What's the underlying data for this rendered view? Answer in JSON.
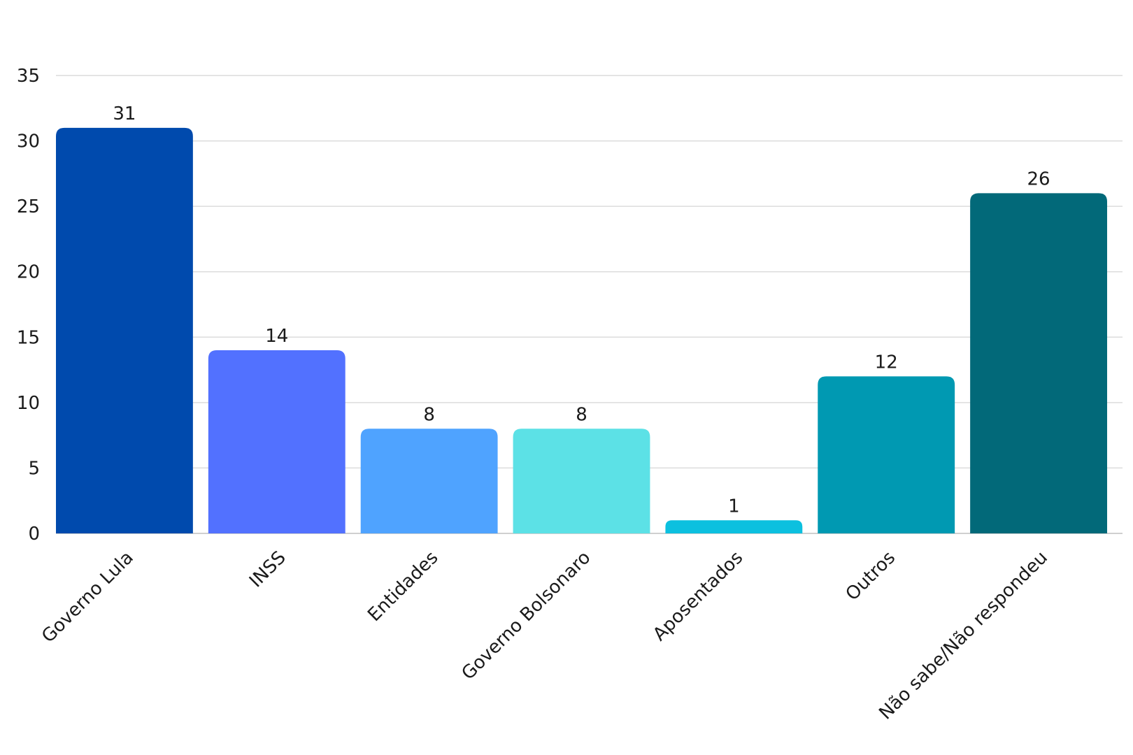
{
  "chart_data": {
    "type": "bar",
    "categories": [
      "Governo Lula",
      "INSS",
      "Entidades",
      "Governo Bolsonaro",
      "Aposentados",
      "Outros",
      "Não sabe/Não respondeu"
    ],
    "values": [
      31,
      14,
      8,
      8,
      1,
      12,
      26
    ],
    "colors": [
      "#004aad",
      "#5271ff",
      "#4fa3ff",
      "#5ce1e6",
      "#0cc0df",
      "#0099b2",
      "#026979"
    ],
    "data_labels": [
      "31",
      "14",
      "8",
      "8",
      "1",
      "12",
      "26"
    ],
    "title": "",
    "xlabel": "",
    "ylabel": "",
    "ylim": [
      0,
      35
    ],
    "yticks": [
      0,
      5,
      10,
      15,
      20,
      25,
      30,
      35
    ],
    "grid": true,
    "legend": "none"
  }
}
